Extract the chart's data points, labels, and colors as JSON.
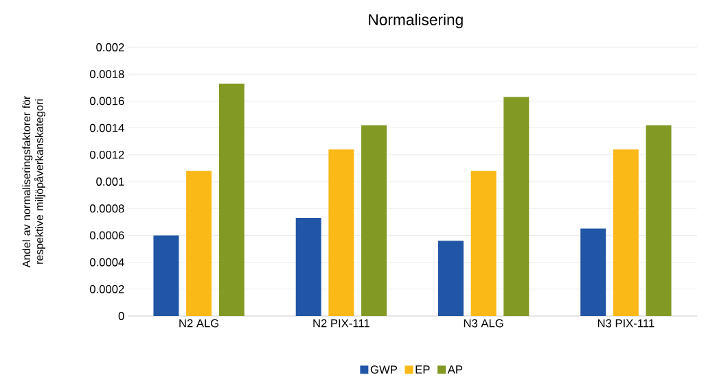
{
  "chart_data": {
    "type": "bar",
    "title": "Normalisering",
    "ylabel": "Andel av normaliseringsfaktorer för respektive miljöpåverkanskategori",
    "categories": [
      "N2 ALG",
      "N2 PIX-111",
      "N3 ALG",
      "N3 PIX-111"
    ],
    "series": [
      {
        "name": "GWP",
        "color": "#2155a5",
        "values": [
          0.0006,
          0.00073,
          0.00056,
          0.00065
        ]
      },
      {
        "name": "EP",
        "color": "#fbb917",
        "values": [
          0.00108,
          0.00124,
          0.00108,
          0.00124
        ]
      },
      {
        "name": "AP",
        "color": "#829a23",
        "values": [
          0.00173,
          0.00142,
          0.00163,
          0.00142
        ]
      }
    ],
    "ylim": [
      0,
      0.002
    ],
    "yticks": [
      0,
      0.0002,
      0.0004,
      0.0006,
      0.0008,
      0.001,
      0.0012,
      0.0014,
      0.0016,
      0.0018,
      0.002
    ],
    "grid": "y",
    "legend": "bottom"
  }
}
